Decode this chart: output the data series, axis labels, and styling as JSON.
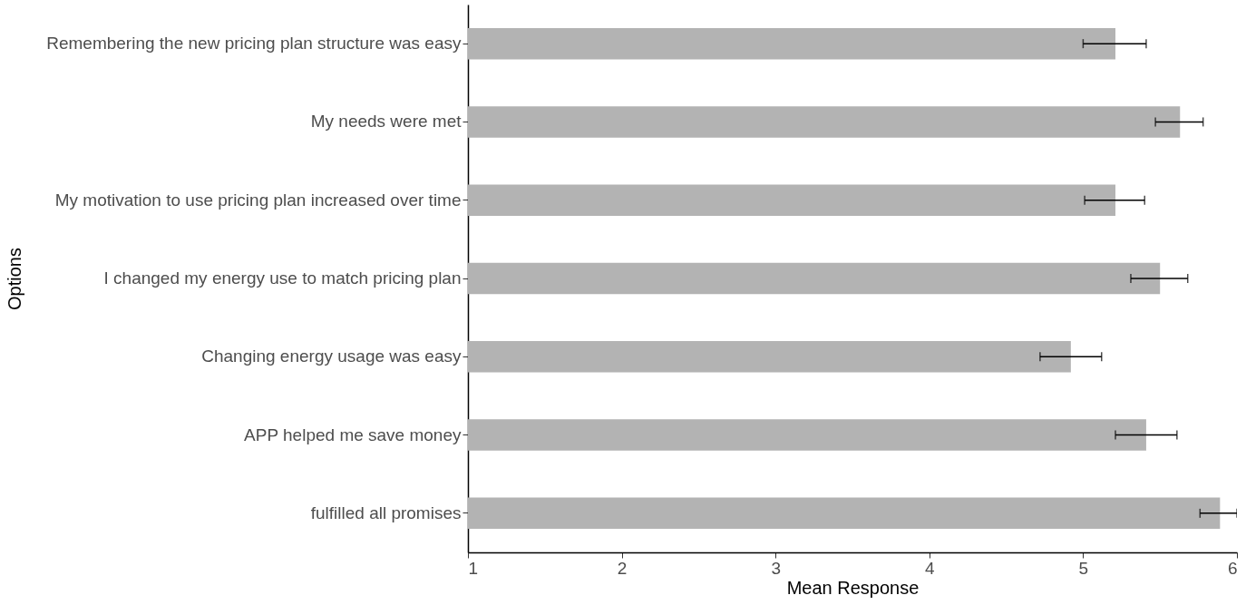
{
  "chart_data": {
    "type": "bar",
    "orientation": "horizontal",
    "xlabel": "Mean Response",
    "ylabel": "Options",
    "categories": [
      "Remembering the new pricing plan structure was easy",
      "My needs were met",
      "My motivation to use pricing plan increased over time",
      "I changed my energy use to match pricing plan",
      "Changing energy usage was easy",
      "APP helped me save money",
      "fulfilled all promises"
    ],
    "values": [
      5.21,
      5.63,
      5.21,
      5.5,
      4.92,
      5.41,
      5.89
    ],
    "errors": [
      [
        5.0,
        5.41
      ],
      [
        5.47,
        5.78
      ],
      [
        5.01,
        5.4
      ],
      [
        5.31,
        5.68
      ],
      [
        4.72,
        5.12
      ],
      [
        5.21,
        5.61
      ],
      [
        5.76,
        6.0
      ]
    ],
    "color": "#b3b3b3",
    "xlim": [
      1,
      6
    ],
    "xticks": [
      1,
      2,
      3,
      4,
      5,
      6
    ],
    "grid": false
  }
}
